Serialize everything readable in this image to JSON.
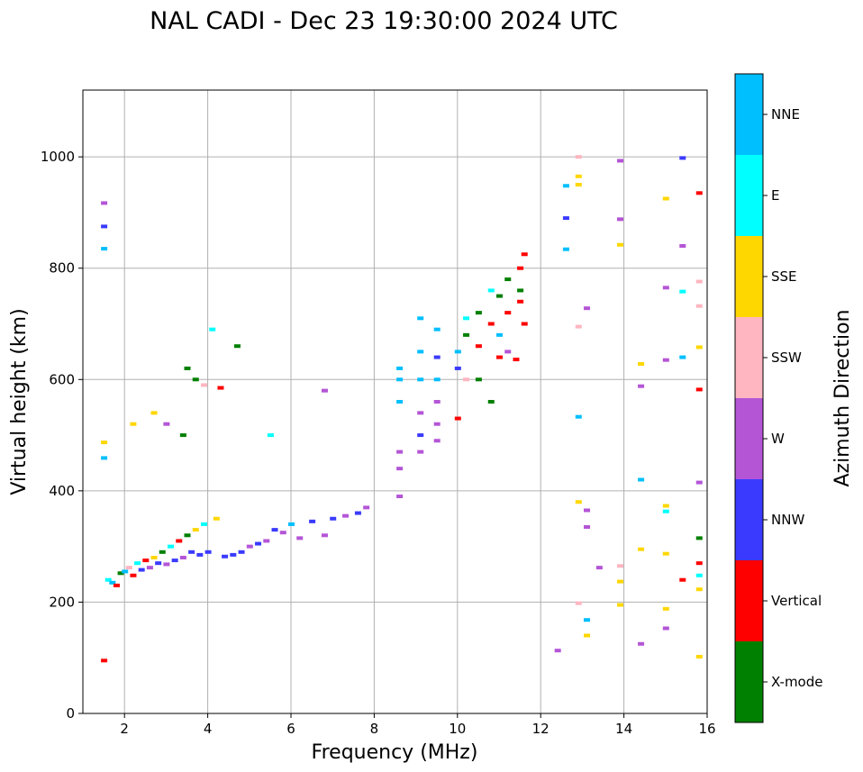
{
  "chart_data": {
    "type": "scatter",
    "title": "NAL CADI - Dec 23 19:30:00 2024 UTC",
    "xlabel": "Frequency (MHz)",
    "ylabel": "Virtual height (km)",
    "xlim": [
      1,
      16
    ],
    "ylim": [
      0,
      1120
    ],
    "xticks": [
      2,
      4,
      6,
      8,
      10,
      12,
      14,
      16
    ],
    "yticks": [
      0,
      200,
      400,
      600,
      800,
      1000
    ],
    "grid": true,
    "colorbar": {
      "label": "Azimuth Direction",
      "categories": [
        {
          "name": "X-mode",
          "color": "#008000"
        },
        {
          "name": "Vertical",
          "color": "#ff0000"
        },
        {
          "name": "NNW",
          "color": "#3a3aff"
        },
        {
          "name": "W",
          "color": "#b455d6"
        },
        {
          "name": "SSW",
          "color": "#ffb6c1"
        },
        {
          "name": "SSE",
          "color": "#ffd700"
        },
        {
          "name": "E",
          "color": "#00ffff"
        },
        {
          "name": "NNE",
          "color": "#00bfff"
        }
      ]
    },
    "points": [
      [
        1.5,
        917,
        "W"
      ],
      [
        1.5,
        875,
        "NNW"
      ],
      [
        1.5,
        835,
        "NNE"
      ],
      [
        1.5,
        95,
        "Vertical"
      ],
      [
        1.5,
        487,
        "SSE"
      ],
      [
        1.5,
        459,
        "NNE"
      ],
      [
        1.6,
        240,
        "E"
      ],
      [
        1.7,
        235,
        "NNE"
      ],
      [
        1.8,
        230,
        "Vertical"
      ],
      [
        1.9,
        252,
        "X-mode"
      ],
      [
        2.0,
        255,
        "NNE"
      ],
      [
        2.1,
        262,
        "SSW"
      ],
      [
        2.2,
        248,
        "Vertical"
      ],
      [
        2.3,
        270,
        "E"
      ],
      [
        2.4,
        258,
        "NNW"
      ],
      [
        2.5,
        275,
        "Vertical"
      ],
      [
        2.6,
        262,
        "W"
      ],
      [
        2.7,
        280,
        "SSE"
      ],
      [
        2.8,
        270,
        "NNW"
      ],
      [
        2.9,
        290,
        "X-mode"
      ],
      [
        3.0,
        268,
        "W"
      ],
      [
        3.1,
        300,
        "E"
      ],
      [
        3.2,
        275,
        "NNW"
      ],
      [
        3.3,
        310,
        "Vertical"
      ],
      [
        3.4,
        280,
        "W"
      ],
      [
        3.5,
        320,
        "X-mode"
      ],
      [
        3.6,
        290,
        "NNW"
      ],
      [
        3.7,
        330,
        "SSE"
      ],
      [
        3.8,
        285,
        "NNW"
      ],
      [
        3.9,
        340,
        "E"
      ],
      [
        4.0,
        290,
        "NNW"
      ],
      [
        4.2,
        350,
        "SSE"
      ],
      [
        4.4,
        282,
        "NNW"
      ],
      [
        4.6,
        285,
        "NNW"
      ],
      [
        4.8,
        290,
        "NNW"
      ],
      [
        5.0,
        300,
        "W"
      ],
      [
        5.2,
        305,
        "NNW"
      ],
      [
        5.4,
        310,
        "W"
      ],
      [
        5.6,
        330,
        "NNW"
      ],
      [
        5.8,
        325,
        "W"
      ],
      [
        6.0,
        340,
        "NNE"
      ],
      [
        6.2,
        315,
        "W"
      ],
      [
        6.5,
        345,
        "NNW"
      ],
      [
        6.8,
        320,
        "W"
      ],
      [
        7.0,
        350,
        "NNW"
      ],
      [
        7.3,
        355,
        "W"
      ],
      [
        7.6,
        360,
        "NNW"
      ],
      [
        7.8,
        370,
        "W"
      ],
      [
        3.5,
        620,
        "X-mode"
      ],
      [
        3.7,
        600,
        "X-mode"
      ],
      [
        3.9,
        590,
        "SSW"
      ],
      [
        4.1,
        690,
        "E"
      ],
      [
        4.3,
        585,
        "Vertical"
      ],
      [
        3.4,
        500,
        "X-mode"
      ],
      [
        2.7,
        540,
        "SSE"
      ],
      [
        3.0,
        520,
        "W"
      ],
      [
        2.2,
        520,
        "SSE"
      ],
      [
        4.7,
        660,
        "X-mode"
      ],
      [
        5.5,
        500,
        "E"
      ],
      [
        6.8,
        580,
        "W"
      ],
      [
        8.6,
        620,
        "NNE"
      ],
      [
        8.6,
        600,
        "NNE"
      ],
      [
        8.6,
        560,
        "NNE"
      ],
      [
        8.6,
        470,
        "W"
      ],
      [
        8.6,
        440,
        "W"
      ],
      [
        8.6,
        390,
        "W"
      ],
      [
        9.1,
        710,
        "NNE"
      ],
      [
        9.1,
        650,
        "NNE"
      ],
      [
        9.1,
        600,
        "NNE"
      ],
      [
        9.1,
        540,
        "W"
      ],
      [
        9.1,
        500,
        "NNW"
      ],
      [
        9.1,
        470,
        "W"
      ],
      [
        9.5,
        690,
        "NNE"
      ],
      [
        9.5,
        640,
        "NNW"
      ],
      [
        9.5,
        600,
        "NNE"
      ],
      [
        9.5,
        560,
        "W"
      ],
      [
        9.5,
        520,
        "W"
      ],
      [
        9.5,
        490,
        "W"
      ],
      [
        10.0,
        650,
        "NNE"
      ],
      [
        10.0,
        620,
        "NNW"
      ],
      [
        10.0,
        530,
        "Vertical"
      ],
      [
        10.2,
        710,
        "E"
      ],
      [
        10.2,
        600,
        "SSW"
      ],
      [
        10.2,
        680,
        "X-mode"
      ],
      [
        10.5,
        720,
        "X-mode"
      ],
      [
        10.5,
        660,
        "Vertical"
      ],
      [
        10.5,
        600,
        "X-mode"
      ],
      [
        10.8,
        760,
        "E"
      ],
      [
        10.8,
        700,
        "Vertical"
      ],
      [
        10.8,
        560,
        "X-mode"
      ],
      [
        11.0,
        750,
        "X-mode"
      ],
      [
        11.0,
        680,
        "NNE"
      ],
      [
        11.0,
        640,
        "Vertical"
      ],
      [
        11.2,
        780,
        "X-mode"
      ],
      [
        11.2,
        720,
        "Vertical"
      ],
      [
        11.2,
        650,
        "W"
      ],
      [
        11.5,
        800,
        "Vertical"
      ],
      [
        11.5,
        760,
        "X-mode"
      ],
      [
        11.5,
        740,
        "Vertical"
      ],
      [
        11.6,
        825,
        "Vertical"
      ],
      [
        11.6,
        700,
        "Vertical"
      ],
      [
        11.4,
        636,
        "Vertical"
      ],
      [
        12.4,
        113,
        "W"
      ],
      [
        12.6,
        948,
        "NNE"
      ],
      [
        12.6,
        890,
        "NNW"
      ],
      [
        12.6,
        834,
        "NNE"
      ],
      [
        12.9,
        1000,
        "SSW"
      ],
      [
        12.9,
        965,
        "SSE"
      ],
      [
        12.9,
        950,
        "SSE"
      ],
      [
        12.9,
        695,
        "SSW"
      ],
      [
        12.9,
        533,
        "NNE"
      ],
      [
        12.9,
        380,
        "SSE"
      ],
      [
        12.9,
        198,
        "SSW"
      ],
      [
        13.1,
        728,
        "W"
      ],
      [
        13.1,
        365,
        "W"
      ],
      [
        13.1,
        335,
        "W"
      ],
      [
        13.1,
        168,
        "NNE"
      ],
      [
        13.1,
        140,
        "SSE"
      ],
      [
        13.4,
        262,
        "W"
      ],
      [
        13.9,
        993,
        "W"
      ],
      [
        13.9,
        888,
        "W"
      ],
      [
        13.9,
        842,
        "SSE"
      ],
      [
        13.9,
        265,
        "SSW"
      ],
      [
        13.9,
        237,
        "SSE"
      ],
      [
        13.9,
        195,
        "SSE"
      ],
      [
        14.4,
        628,
        "SSE"
      ],
      [
        14.4,
        588,
        "W"
      ],
      [
        14.4,
        420,
        "NNE"
      ],
      [
        14.4,
        295,
        "SSE"
      ],
      [
        14.4,
        125,
        "W"
      ],
      [
        15.0,
        925,
        "SSE"
      ],
      [
        15.0,
        765,
        "W"
      ],
      [
        15.0,
        635,
        "W"
      ],
      [
        15.0,
        373,
        "SSE"
      ],
      [
        15.0,
        363,
        "E"
      ],
      [
        15.0,
        287,
        "SSE"
      ],
      [
        15.0,
        188,
        "SSE"
      ],
      [
        15.0,
        153,
        "W"
      ],
      [
        15.4,
        998,
        "NNW"
      ],
      [
        15.4,
        840,
        "W"
      ],
      [
        15.4,
        758,
        "E"
      ],
      [
        15.4,
        640,
        "NNE"
      ],
      [
        15.4,
        240,
        "Vertical"
      ],
      [
        15.8,
        935,
        "Vertical"
      ],
      [
        15.8,
        776,
        "SSW"
      ],
      [
        15.8,
        732,
        "SSW"
      ],
      [
        15.8,
        658,
        "SSE"
      ],
      [
        15.8,
        582,
        "Vertical"
      ],
      [
        15.8,
        415,
        "W"
      ],
      [
        15.8,
        315,
        "X-mode"
      ],
      [
        15.8,
        270,
        "Vertical"
      ],
      [
        15.8,
        248,
        "E"
      ],
      [
        15.8,
        223,
        "SSE"
      ],
      [
        15.8,
        102,
        "SSE"
      ]
    ]
  }
}
